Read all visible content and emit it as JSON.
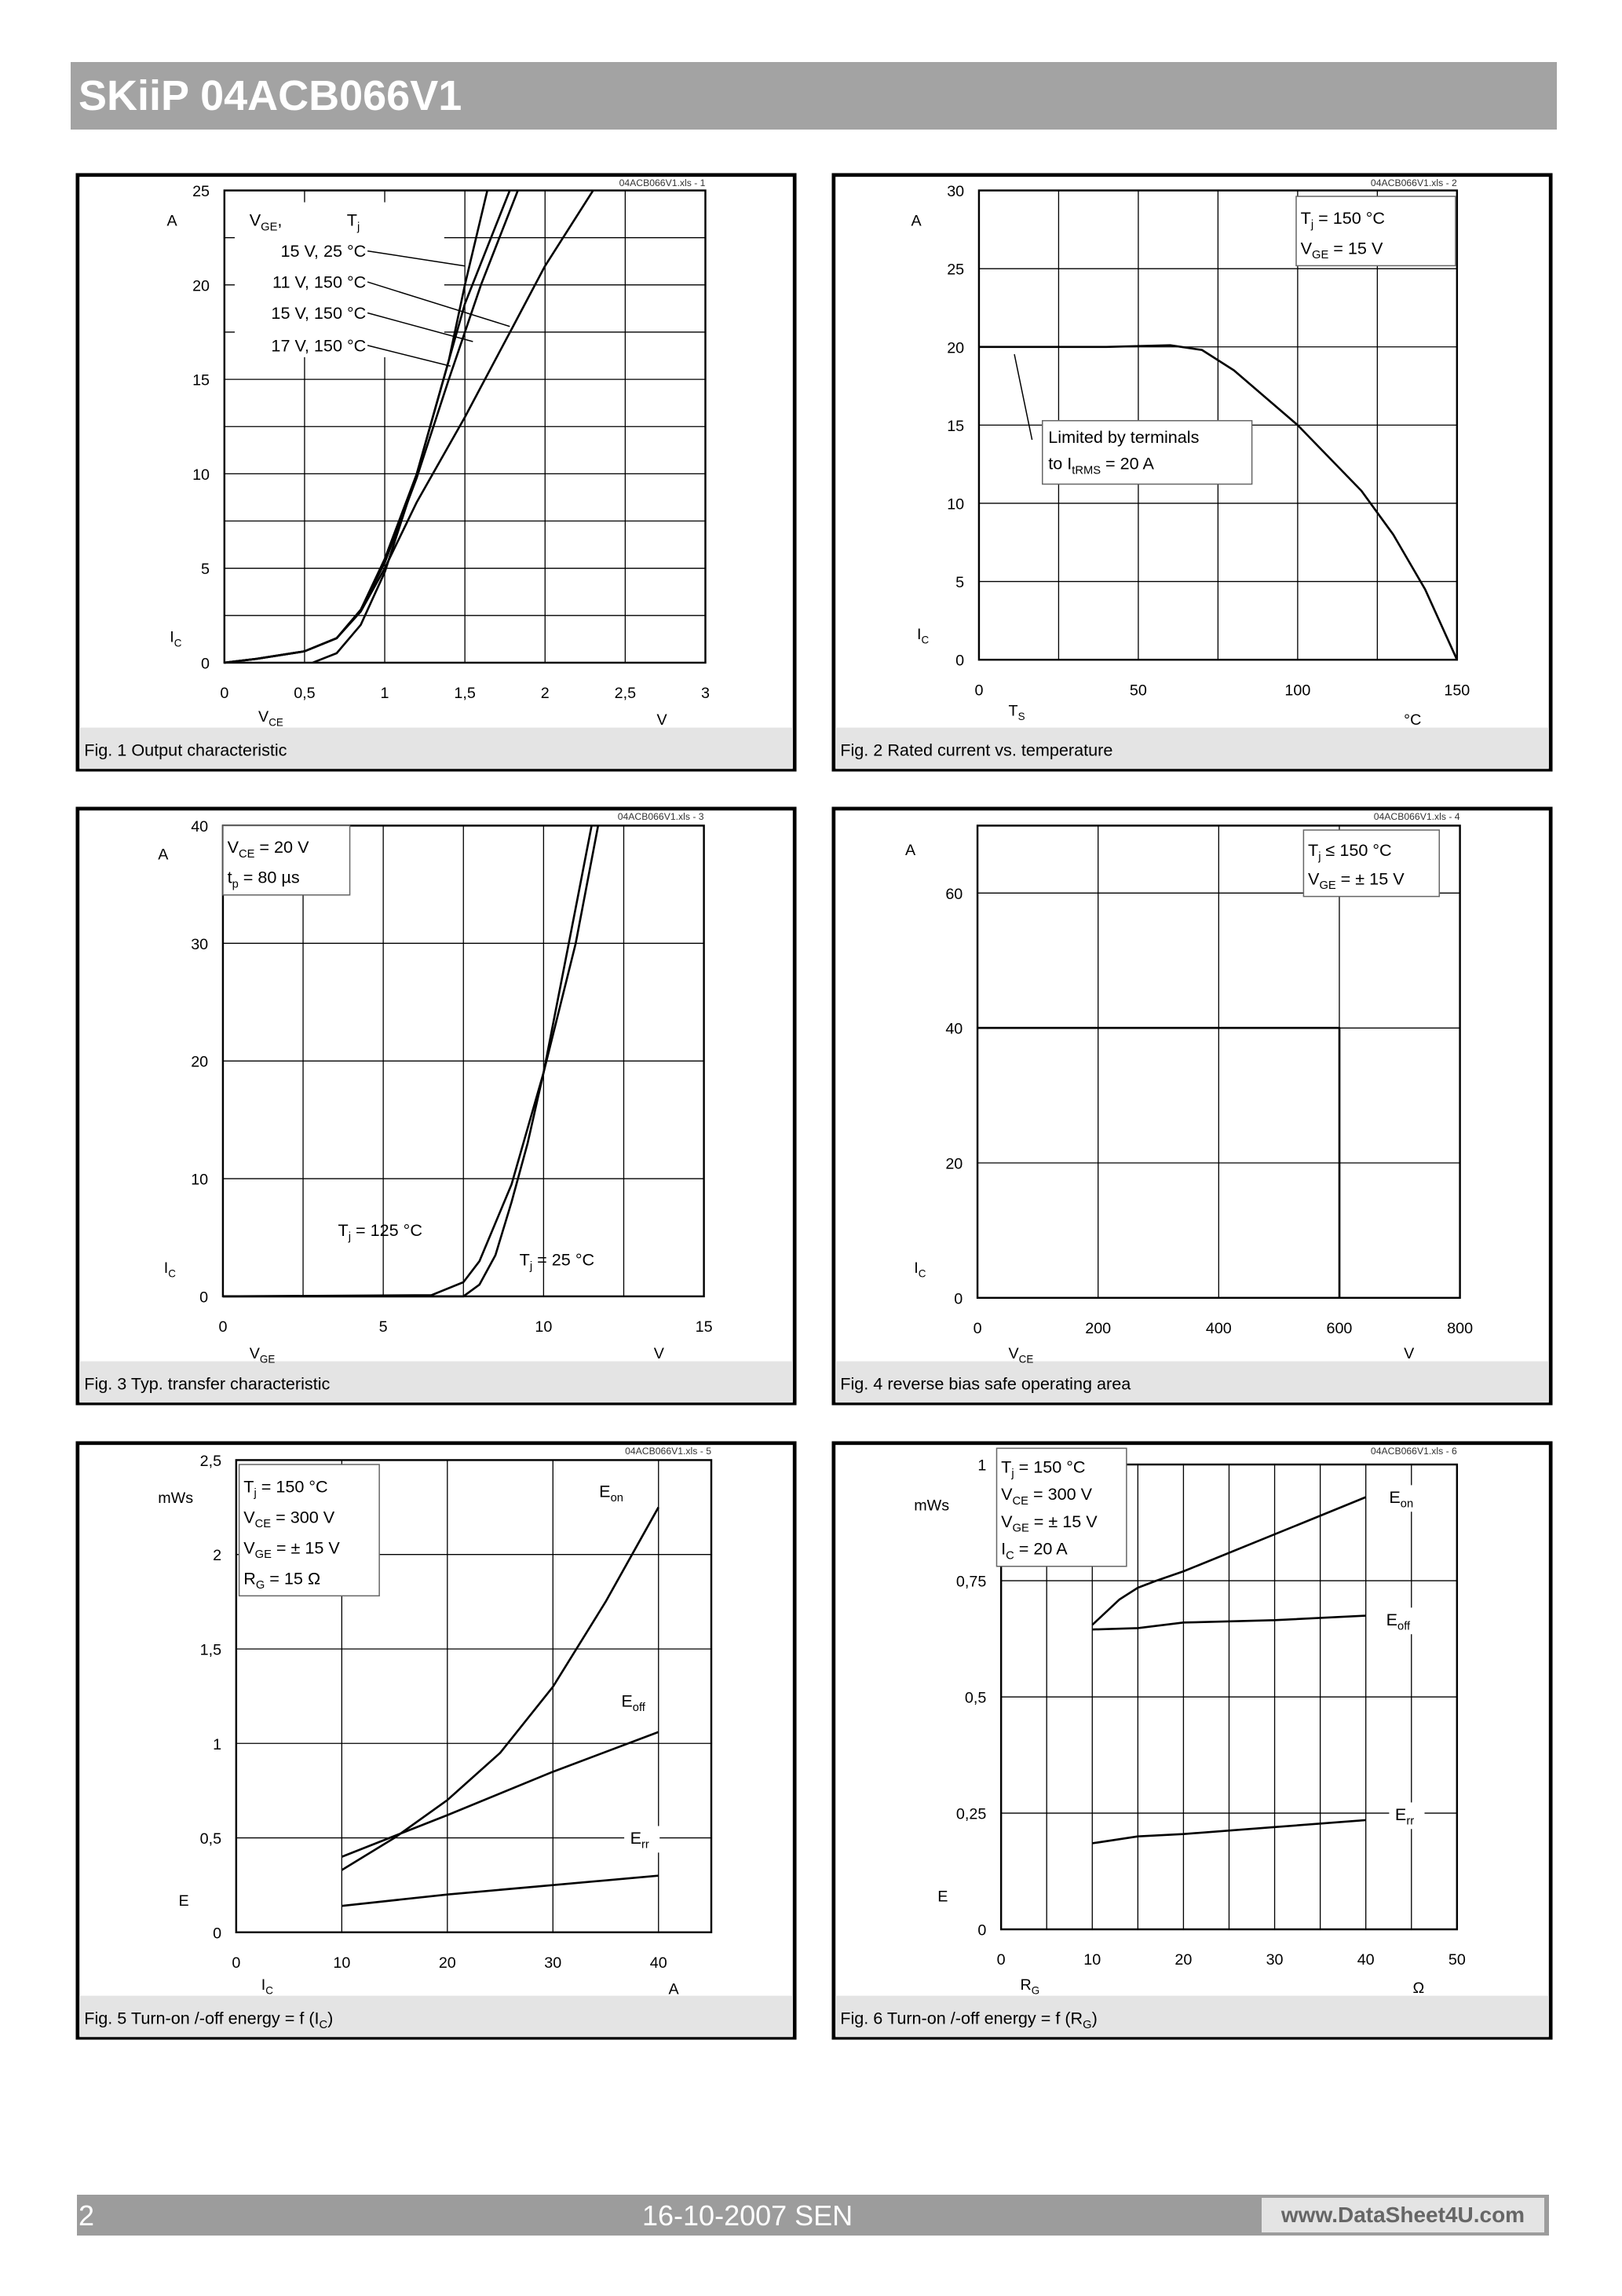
{
  "header": {
    "title": "SKiiP 04ACB066V1"
  },
  "footer": {
    "page": "2",
    "date": "16-10-2007  SEN",
    "logo_text": "www.DataSheet4U.com"
  },
  "colors": {
    "header_bar": "#a3a3a3",
    "caption_bar": "#e4e4e4",
    "curve": "#000000",
    "grid": "#000000"
  },
  "chart_data": [
    {
      "type": "line",
      "file_tag": "04ACB066V1.xls - 1",
      "caption": [
        [
          "Fig. 1 Output characteristic"
        ]
      ],
      "xlim": [
        0,
        3
      ],
      "ylim": [
        0,
        25
      ],
      "grid": true,
      "xticks": [
        {
          "v": 0,
          "l": "0"
        },
        {
          "v": 0.5,
          "l": "0,5"
        },
        {
          "v": 1,
          "l": "1"
        },
        {
          "v": 1.5,
          "l": "1,5"
        },
        {
          "v": 2,
          "l": "2"
        },
        {
          "v": 2.5,
          "l": "2,5"
        },
        {
          "v": 3,
          "l": "3"
        }
      ],
      "yticks": [
        {
          "v": 0,
          "l": "0"
        },
        {
          "v": 5,
          "l": "5"
        },
        {
          "v": 10,
          "l": "10"
        },
        {
          "v": 15,
          "l": "15"
        },
        {
          "v": 20,
          "l": "20"
        },
        {
          "v": 25,
          "l": "25"
        }
      ],
      "xlabel": [
        "V",
        "CE"
      ],
      "xunit": [
        "V"
      ],
      "ylabel": [
        "I",
        "C"
      ],
      "yunit": [
        "A"
      ],
      "legend_title": [
        [
          "V",
          "GE",
          ","
        ],
        [
          "T",
          "j"
        ]
      ],
      "series": [
        {
          "name": [
            "15 V,   25 °C"
          ],
          "points": [
            [
              0.55,
              0
            ],
            [
              0.7,
              0.5
            ],
            [
              0.85,
              2
            ],
            [
              1,
              4.8
            ],
            [
              1.2,
              10
            ],
            [
              1.4,
              16
            ],
            [
              1.5,
              20
            ],
            [
              1.64,
              25
            ]
          ]
        },
        {
          "name": [
            "11 V, 150 °C"
          ],
          "points": [
            [
              0,
              0
            ],
            [
              0.2,
              0.2
            ],
            [
              0.5,
              0.6
            ],
            [
              0.7,
              1.3
            ],
            [
              0.85,
              2.7
            ],
            [
              1,
              5
            ],
            [
              1.2,
              8.5
            ],
            [
              1.5,
              13
            ],
            [
              1.8,
              17.8
            ],
            [
              2,
              21
            ],
            [
              2.3,
              25
            ]
          ]
        },
        {
          "name": [
            "15 V, 150 °C"
          ],
          "points": [
            [
              0,
              0
            ],
            [
              0.2,
              0.2
            ],
            [
              0.5,
              0.6
            ],
            [
              0.7,
              1.3
            ],
            [
              0.85,
              2.8
            ],
            [
              1,
              5.3
            ],
            [
              1.2,
              9.8
            ],
            [
              1.4,
              15
            ],
            [
              1.6,
              20
            ],
            [
              1.83,
              25
            ]
          ]
        },
        {
          "name": [
            "17 V, 150 °C"
          ],
          "points": [
            [
              0,
              0
            ],
            [
              0.2,
              0.2
            ],
            [
              0.5,
              0.6
            ],
            [
              0.7,
              1.3
            ],
            [
              0.85,
              2.8
            ],
            [
              1,
              5.5
            ],
            [
              1.2,
              10
            ],
            [
              1.4,
              16
            ],
            [
              1.5,
              19
            ],
            [
              1.78,
              25
            ]
          ]
        }
      ]
    },
    {
      "type": "line",
      "file_tag": "04ACB066V1.xls - 2",
      "caption": [
        [
          "Fig. 2 Rated current vs. temperature"
        ]
      ],
      "xlim": [
        0,
        150
      ],
      "ylim": [
        0,
        30
      ],
      "grid": true,
      "xticks": [
        {
          "v": 0,
          "l": "0"
        },
        {
          "v": 50,
          "l": "50"
        },
        {
          "v": 100,
          "l": "100"
        },
        {
          "v": 150,
          "l": "150"
        }
      ],
      "yticks": [
        {
          "v": 0,
          "l": "0"
        },
        {
          "v": 5,
          "l": "5"
        },
        {
          "v": 10,
          "l": "10"
        },
        {
          "v": 15,
          "l": "15"
        },
        {
          "v": 20,
          "l": "20"
        },
        {
          "v": 25,
          "l": "25"
        },
        {
          "v": 30,
          "l": "30"
        }
      ],
      "xlabel": [
        "T",
        "S"
      ],
      "xunit": [
        "°C"
      ],
      "ylabel": [
        "I",
        "C"
      ],
      "yunit": [
        "A"
      ],
      "conditions": [
        [
          "T",
          "j",
          "     = 150 °C"
        ],
        [
          "V",
          "GE",
          " = 15 V"
        ]
      ],
      "annotation": [
        [
          "Limited by terminals"
        ],
        [
          "to I",
          "tRMS",
          " = 20 A"
        ]
      ],
      "series": [
        {
          "points": [
            [
              0,
              20
            ],
            [
              40,
              20
            ],
            [
              60,
              20.1
            ],
            [
              70,
              19.8
            ],
            [
              80,
              18.5
            ],
            [
              100,
              15
            ],
            [
              120,
              10.8
            ],
            [
              130,
              8
            ],
            [
              140,
              4.5
            ],
            [
              150,
              0
            ]
          ]
        }
      ]
    },
    {
      "type": "line",
      "file_tag": "04ACB066V1.xls - 3",
      "caption": [
        [
          "Fig. 3 Typ. transfer characteristic"
        ]
      ],
      "xlim": [
        0,
        15
      ],
      "ylim": [
        0,
        40
      ],
      "grid": true,
      "xticks": [
        {
          "v": 0,
          "l": "0"
        },
        {
          "v": 5,
          "l": "5"
        },
        {
          "v": 10,
          "l": "10"
        },
        {
          "v": 15,
          "l": "15"
        }
      ],
      "yticks": [
        {
          "v": 0,
          "l": "0"
        },
        {
          "v": 10,
          "l": "10"
        },
        {
          "v": 20,
          "l": "20"
        },
        {
          "v": 30,
          "l": "30"
        },
        {
          "v": 40,
          "l": "40"
        }
      ],
      "xlabel": [
        "V",
        "GE"
      ],
      "xunit": [
        "V"
      ],
      "ylabel": [
        "I",
        "C"
      ],
      "yunit": [
        "A"
      ],
      "conditions": [
        [
          "V",
          "CE",
          " = 20 V"
        ],
        [
          "t",
          "p",
          "    = 80 µs"
        ]
      ],
      "series": [
        {
          "name": [
            "T",
            "j",
            " = 125 °C"
          ],
          "points": [
            [
              0,
              0
            ],
            [
              6.5,
              0.1
            ],
            [
              7.5,
              1.2
            ],
            [
              8,
              3
            ],
            [
              9,
              9.5
            ],
            [
              10,
              19
            ],
            [
              11,
              30
            ],
            [
              11.7,
              40
            ]
          ]
        },
        {
          "name": [
            "T",
            "j",
            " = 25 °C"
          ],
          "points": [
            [
              0,
              0
            ],
            [
              7.5,
              0
            ],
            [
              8,
              1
            ],
            [
              8.5,
              3.5
            ],
            [
              9,
              8
            ],
            [
              9.5,
              13
            ],
            [
              10,
              19
            ],
            [
              11,
              33
            ],
            [
              11.5,
              40
            ]
          ]
        }
      ]
    },
    {
      "type": "line",
      "file_tag": "04ACB066V1.xls - 4",
      "caption": [
        [
          "Fig. 4 reverse bias safe operating area"
        ]
      ],
      "xlim": [
        0,
        800
      ],
      "ylim": [
        0,
        70
      ],
      "grid": true,
      "xticks": [
        {
          "v": 0,
          "l": "0"
        },
        {
          "v": 200,
          "l": "200"
        },
        {
          "v": 400,
          "l": "400"
        },
        {
          "v": 600,
          "l": "600"
        },
        {
          "v": 800,
          "l": "800"
        }
      ],
      "yticks": [
        {
          "v": 0,
          "l": "0"
        },
        {
          "v": 20,
          "l": "20"
        },
        {
          "v": 40,
          "l": "40"
        },
        {
          "v": 60,
          "l": "60"
        }
      ],
      "xlabel": [
        "V",
        "CE"
      ],
      "xunit": [
        "V"
      ],
      "ylabel": [
        "I",
        "C"
      ],
      "yunit": [
        "A"
      ],
      "conditions": [
        [
          "T",
          "j",
          "    ≤ 150 °C"
        ],
        [
          "V",
          "GE",
          " = ± 15 V"
        ]
      ],
      "series": [
        {
          "points": [
            [
              0,
              40
            ],
            [
              600,
              40
            ],
            [
              600,
              0
            ]
          ]
        }
      ]
    },
    {
      "type": "line",
      "file_tag": "04ACB066V1.xls - 5",
      "caption": [
        [
          "Fig. 5 Turn-on /-off energy = f (I",
          "C",
          ")"
        ]
      ],
      "xlim": [
        0,
        45
      ],
      "ylim": [
        0,
        2.5
      ],
      "grid": true,
      "xticks": [
        {
          "v": 0,
          "l": "0"
        },
        {
          "v": 10,
          "l": "10"
        },
        {
          "v": 20,
          "l": "20"
        },
        {
          "v": 30,
          "l": "30"
        },
        {
          "v": 40,
          "l": "40"
        }
      ],
      "yticks": [
        {
          "v": 0,
          "l": "0"
        },
        {
          "v": 0.5,
          "l": "0,5"
        },
        {
          "v": 1,
          "l": "1"
        },
        {
          "v": 1.5,
          "l": "1,5"
        },
        {
          "v": 2,
          "l": "2"
        },
        {
          "v": 2.5,
          "l": "2,5"
        }
      ],
      "xlabel": [
        "I",
        "C"
      ],
      "xunit": [
        "A"
      ],
      "ylabel": [
        "E"
      ],
      "yunit": [
        "mWs"
      ],
      "conditions": [
        [
          "T",
          "j",
          "    = 150 °C"
        ],
        [
          "V",
          "CE",
          " = 300 V"
        ],
        [
          "V",
          "GE",
          " = ± 15 V"
        ],
        [
          "R",
          "G",
          "    = 15 Ω"
        ]
      ],
      "series": [
        {
          "name": [
            "E",
            "on"
          ],
          "points": [
            [
              10,
              0.33
            ],
            [
              15,
              0.5
            ],
            [
              20,
              0.7
            ],
            [
              25,
              0.95
            ],
            [
              30,
              1.3
            ],
            [
              35,
              1.75
            ],
            [
              40,
              2.25
            ]
          ]
        },
        {
          "name": [
            "E",
            "off"
          ],
          "points": [
            [
              10,
              0.4
            ],
            [
              20,
              0.62
            ],
            [
              30,
              0.85
            ],
            [
              40,
              1.06
            ]
          ]
        },
        {
          "name": [
            "E",
            "rr"
          ],
          "points": [
            [
              10,
              0.14
            ],
            [
              20,
              0.2
            ],
            [
              30,
              0.25
            ],
            [
              40,
              0.3
            ]
          ]
        }
      ]
    },
    {
      "type": "line",
      "file_tag": "04ACB066V1.xls - 6",
      "caption": [
        [
          "Fig. 6 Turn-on /-off energy = f (R",
          "G",
          ")"
        ]
      ],
      "xlim": [
        0,
        50
      ],
      "ylim": [
        0,
        1
      ],
      "grid": true,
      "xticks": [
        {
          "v": 0,
          "l": "0"
        },
        {
          "v": 10,
          "l": "10"
        },
        {
          "v": 20,
          "l": "20"
        },
        {
          "v": 30,
          "l": "30"
        },
        {
          "v": 40,
          "l": "40"
        },
        {
          "v": 50,
          "l": "50"
        }
      ],
      "yticks": [
        {
          "v": 0,
          "l": "0"
        },
        {
          "v": 0.25,
          "l": "0,25"
        },
        {
          "v": 0.5,
          "l": "0,5"
        },
        {
          "v": 0.75,
          "l": "0,75"
        },
        {
          "v": 1,
          "l": "1"
        }
      ],
      "xlabel": [
        "R",
        "G"
      ],
      "xunit": [
        "Ω"
      ],
      "ylabel": [
        "E"
      ],
      "yunit": [
        "mWs"
      ],
      "conditions": [
        [
          "T",
          "j",
          "    = 150 °C"
        ],
        [
          "V",
          "CE",
          " = 300 V"
        ],
        [
          "V",
          "GE",
          " = ± 15 V"
        ],
        [
          "I",
          "C",
          "    = 20 A"
        ]
      ],
      "series": [
        {
          "name": [
            "E",
            "on"
          ],
          "points": [
            [
              10,
              0.655
            ],
            [
              13,
              0.71
            ],
            [
              15,
              0.735
            ],
            [
              17,
              0.75
            ],
            [
              20,
              0.77
            ],
            [
              30,
              0.85
            ],
            [
              40,
              0.93
            ]
          ]
        },
        {
          "name": [
            "E",
            "off"
          ],
          "points": [
            [
              10,
              0.645
            ],
            [
              15,
              0.648
            ],
            [
              20,
              0.66
            ],
            [
              30,
              0.665
            ],
            [
              40,
              0.675
            ]
          ]
        },
        {
          "name": [
            "E",
            "rr"
          ],
          "points": [
            [
              10,
              0.185
            ],
            [
              15,
              0.2
            ],
            [
              20,
              0.205
            ],
            [
              30,
              0.22
            ],
            [
              40,
              0.235
            ]
          ]
        }
      ]
    }
  ]
}
